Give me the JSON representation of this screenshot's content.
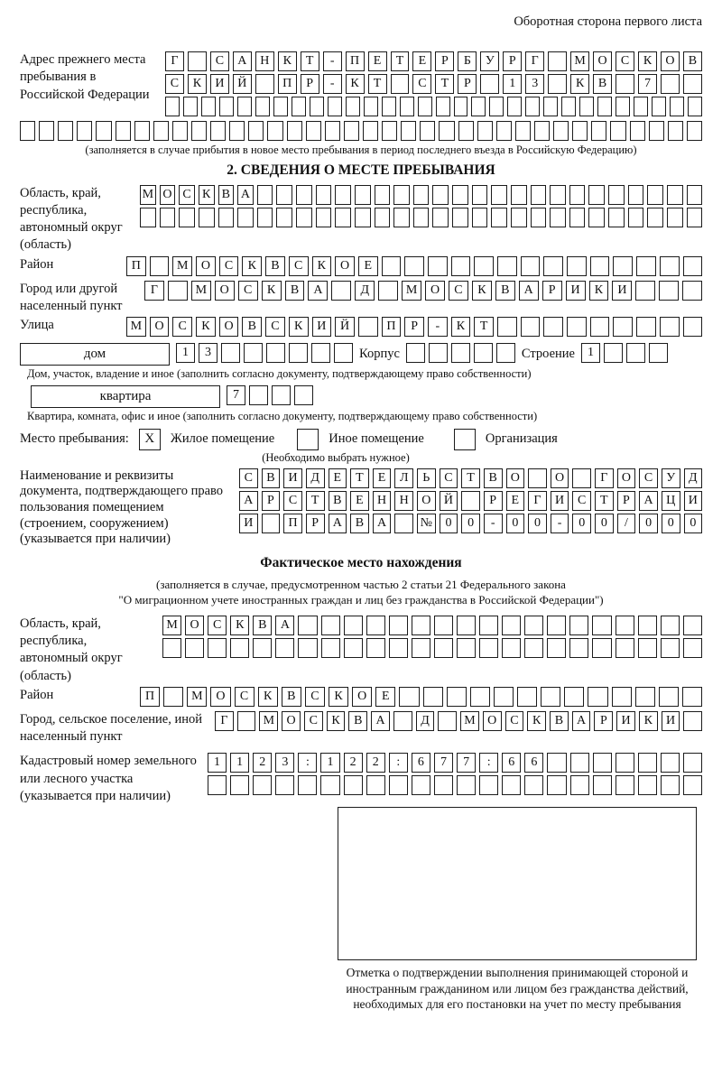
{
  "header": {
    "note": "Оборотная сторона первого листа"
  },
  "prev_address": {
    "label": "Адрес прежнего места пребывания в Российской Федерации",
    "row1": {
      "text": "Г САНКТ-ПЕТЕРБУРГ МОСКОВ",
      "len": 24
    },
    "row2": {
      "text": "СКИЙ ПР-КТ СТР 13 КВ 7",
      "len": 24
    },
    "row3": 30,
    "row4": 36,
    "caption": "(заполняется в случае прибытия в новое место пребывания в период последнего въезда в Российскую Федерацию)"
  },
  "section2": {
    "title": "2. СВЕДЕНИЯ О МЕСТЕ ПРЕБЫВАНИЯ",
    "region": {
      "label": "Область, край, республика, автономный округ (область)",
      "row1": {
        "text": "МОСКВА",
        "len": 29
      },
      "row2": 29
    },
    "district": {
      "label": "Район",
      "row": {
        "text": "П МОСКВСКОЕ",
        "len": 25
      }
    },
    "city": {
      "label": "Город или другой населенный пункт",
      "row": {
        "text": "Г МОСКВА Д МОСКВАРИКИ",
        "len": 24
      }
    },
    "street": {
      "label": "Улица",
      "row": {
        "text": "МОСКОВСКИЙ ПР-КТ",
        "len": 25
      }
    },
    "house": {
      "box_label": "дом",
      "cells": {
        "text": "13",
        "len": 8
      },
      "korpus_label": "Корпус",
      "korpus_cells": 5,
      "stroenie_label": "Строение",
      "stroenie_cells": {
        "text": "1",
        "len": 4
      }
    },
    "house_caption": "Дом, участок, владение и иное (заполнить согласно документу, подтверждающему право собственности)",
    "apartment": {
      "box_label": "квартира",
      "cells": {
        "text": "7",
        "len": 4
      }
    },
    "apartment_caption": "Квартира, комната, офис и иное (заполнить согласно документу, подтверждающему право собственности)",
    "place": {
      "label": "Место пребывания:",
      "options": [
        {
          "label": "Жилое помещение",
          "mark": "X"
        },
        {
          "label": "Иное помещение",
          "mark": ""
        },
        {
          "label": "Организация",
          "mark": ""
        }
      ],
      "note": "(Необходимо выбрать нужное)"
    },
    "document": {
      "label": "Наименование и реквизиты документа, подтверждающего право пользования помещением (строением, сооружением) (указывается при наличии)",
      "row1": {
        "text": "СВИДЕТЕЛЬСТВО О ГОСУД",
        "len": 21
      },
      "row2": {
        "text": "АРСТВЕННОЙ РЕГИСТРАЦИ",
        "len": 21
      },
      "row3": {
        "text": "И ПРАВА №00-00-00/000",
        "len": 21
      }
    }
  },
  "section3": {
    "title": "Фактическое место нахождения",
    "caption1": "(заполняется в случае, предусмотренном частью 2 статьи 21 Федерального закона",
    "caption2": "\"О миграционном учете иностранных граждан и лиц без гражданства в Российской Федерации\")",
    "region": {
      "label": "Область, край, республика, автономный округ (область)",
      "row1": {
        "text": "МОСКВА",
        "len": 24
      },
      "row2": 24
    },
    "district": {
      "label": "Район",
      "row": {
        "text": "П МОСКВСКОЕ",
        "len": 24
      }
    },
    "city": {
      "label": "Город, сельское поселение, иной населенный пункт",
      "row": {
        "text": "Г МОСКВА Д МОСКВАРИКИ",
        "len": 22
      }
    },
    "cadastre": {
      "label": "Кадастровый номер земельного или лесного участка (указывается при наличии)",
      "row1": {
        "text": "1123:122:677:66",
        "len": 22
      },
      "row2": 22
    }
  },
  "stamp": {
    "caption": "Отметка о подтверждении выполнения принимающей стороной и иностранным гражданином или лицом без гражданства действий, необходимых для его постановки на учет по месту пребывания"
  }
}
